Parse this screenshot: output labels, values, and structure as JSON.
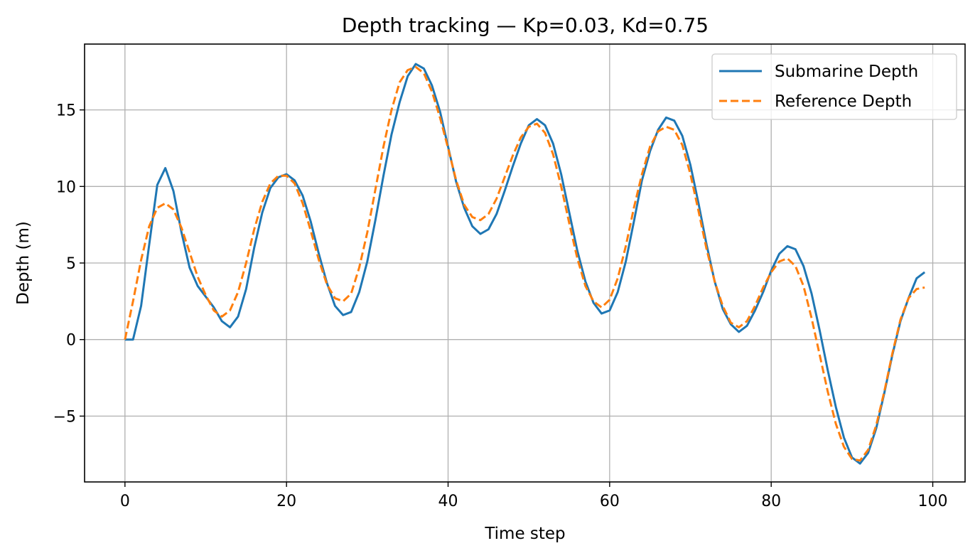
{
  "chart_data": {
    "type": "line",
    "title": "Depth tracking — Kp=0.03, Kd=0.75",
    "xlabel": "Time step",
    "ylabel": "Depth (m)",
    "xlim": [
      -5,
      104
    ],
    "ylim": [
      -9.3,
      19.3
    ],
    "grid": true,
    "legend_position": "top-right",
    "x_ticks": [
      0,
      20,
      40,
      60,
      80,
      100
    ],
    "x_tick_labels": [
      "0",
      "20",
      "40",
      "60",
      "80",
      "100"
    ],
    "y_ticks": [
      -5,
      0,
      5,
      10,
      15
    ],
    "y_tick_labels": [
      "−5",
      "0",
      "5",
      "10",
      "15"
    ],
    "series": [
      {
        "name": "Submarine Depth",
        "color": "#1f77b4",
        "style": "solid",
        "points": [
          [
            0,
            0
          ],
          [
            1,
            0
          ],
          [
            2,
            2.2
          ],
          [
            3,
            6.2
          ],
          [
            4,
            10.1
          ],
          [
            5,
            11.2
          ],
          [
            6,
            9.7
          ],
          [
            7,
            7
          ],
          [
            8,
            4.7
          ],
          [
            9,
            3.5
          ],
          [
            10,
            2.8
          ],
          [
            11,
            2.1
          ],
          [
            12,
            1.2
          ],
          [
            13,
            0.8
          ],
          [
            14,
            1.5
          ],
          [
            15,
            3.3
          ],
          [
            16,
            6
          ],
          [
            17,
            8.3
          ],
          [
            18,
            9.9
          ],
          [
            19,
            10.6
          ],
          [
            20,
            10.8
          ],
          [
            21,
            10.4
          ],
          [
            22,
            9.4
          ],
          [
            23,
            7.7
          ],
          [
            24,
            5.6
          ],
          [
            25,
            3.7
          ],
          [
            26,
            2.2
          ],
          [
            27,
            1.6
          ],
          [
            28,
            1.8
          ],
          [
            29,
            3.1
          ],
          [
            30,
            5.1
          ],
          [
            31,
            7.8
          ],
          [
            32,
            10.7
          ],
          [
            33,
            13.4
          ],
          [
            34,
            15.5
          ],
          [
            35,
            17.2
          ],
          [
            36,
            18
          ],
          [
            37,
            17.7
          ],
          [
            38,
            16.6
          ],
          [
            39,
            14.9
          ],
          [
            40,
            12.6
          ],
          [
            41,
            10.3
          ],
          [
            42,
            8.6
          ],
          [
            43,
            7.4
          ],
          [
            44,
            6.9
          ],
          [
            45,
            7.2
          ],
          [
            46,
            8.2
          ],
          [
            47,
            9.7
          ],
          [
            48,
            11.3
          ],
          [
            49,
            12.8
          ],
          [
            50,
            14
          ],
          [
            51,
            14.4
          ],
          [
            52,
            14
          ],
          [
            53,
            12.8
          ],
          [
            54,
            10.8
          ],
          [
            55,
            8.3
          ],
          [
            56,
            5.8
          ],
          [
            57,
            3.8
          ],
          [
            58,
            2.4
          ],
          [
            59,
            1.7
          ],
          [
            60,
            1.9
          ],
          [
            61,
            3.1
          ],
          [
            62,
            5.1
          ],
          [
            63,
            7.7
          ],
          [
            64,
            10.4
          ],
          [
            65,
            12.3
          ],
          [
            66,
            13.7
          ],
          [
            67,
            14.5
          ],
          [
            68,
            14.3
          ],
          [
            69,
            13.3
          ],
          [
            70,
            11.4
          ],
          [
            71,
            8.9
          ],
          [
            72,
            6.2
          ],
          [
            73,
            3.8
          ],
          [
            74,
            2
          ],
          [
            75,
            1
          ],
          [
            76,
            0.5
          ],
          [
            77,
            0.9
          ],
          [
            78,
            1.9
          ],
          [
            79,
            3.1
          ],
          [
            80,
            4.5
          ],
          [
            81,
            5.6
          ],
          [
            82,
            6.1
          ],
          [
            83,
            5.9
          ],
          [
            84,
            4.8
          ],
          [
            85,
            3
          ],
          [
            86,
            0.6
          ],
          [
            87,
            -2
          ],
          [
            88,
            -4.4
          ],
          [
            89,
            -6.4
          ],
          [
            90,
            -7.7
          ],
          [
            91,
            -8.1
          ],
          [
            92,
            -7.4
          ],
          [
            93,
            -5.8
          ],
          [
            94,
            -3.5
          ],
          [
            95,
            -1
          ],
          [
            96,
            1.2
          ],
          [
            97,
            2.7
          ],
          [
            98,
            4
          ],
          [
            99,
            4.4
          ]
        ]
      },
      {
        "name": "Reference Depth",
        "color": "#ff7f0e",
        "style": "dashed",
        "points": [
          [
            0,
            0
          ],
          [
            1,
            2.5
          ],
          [
            2,
            5.2
          ],
          [
            3,
            7.4
          ],
          [
            4,
            8.6
          ],
          [
            5,
            8.9
          ],
          [
            6,
            8.5
          ],
          [
            7,
            7.3
          ],
          [
            8,
            5.7
          ],
          [
            9,
            4.1
          ],
          [
            10,
            2.9
          ],
          [
            11,
            1.9
          ],
          [
            12,
            1.5
          ],
          [
            13,
            1.9
          ],
          [
            14,
            3.1
          ],
          [
            15,
            5
          ],
          [
            16,
            7.2
          ],
          [
            17,
            9
          ],
          [
            18,
            10.2
          ],
          [
            19,
            10.7
          ],
          [
            20,
            10.7
          ],
          [
            21,
            10.2
          ],
          [
            22,
            8.9
          ],
          [
            23,
            7.1
          ],
          [
            24,
            5.2
          ],
          [
            25,
            3.6
          ],
          [
            26,
            2.7
          ],
          [
            27,
            2.5
          ],
          [
            28,
            3
          ],
          [
            29,
            4.7
          ],
          [
            30,
            7
          ],
          [
            31,
            9.8
          ],
          [
            32,
            12.6
          ],
          [
            33,
            15
          ],
          [
            34,
            16.8
          ],
          [
            35,
            17.6
          ],
          [
            36,
            17.8
          ],
          [
            37,
            17.4
          ],
          [
            38,
            16.2
          ],
          [
            39,
            14.5
          ],
          [
            40,
            12.5
          ],
          [
            41,
            10.4
          ],
          [
            42,
            8.8
          ],
          [
            43,
            8
          ],
          [
            44,
            7.8
          ],
          [
            45,
            8.2
          ],
          [
            46,
            9.2
          ],
          [
            47,
            10.6
          ],
          [
            48,
            12
          ],
          [
            49,
            13.2
          ],
          [
            50,
            13.9
          ],
          [
            51,
            14.1
          ],
          [
            52,
            13.5
          ],
          [
            53,
            12.1
          ],
          [
            54,
            10
          ],
          [
            55,
            7.6
          ],
          [
            56,
            5.3
          ],
          [
            57,
            3.5
          ],
          [
            58,
            2.5
          ],
          [
            59,
            2.1
          ],
          [
            60,
            2.6
          ],
          [
            61,
            4
          ],
          [
            62,
            6.1
          ],
          [
            63,
            8.6
          ],
          [
            64,
            10.8
          ],
          [
            65,
            12.6
          ],
          [
            66,
            13.6
          ],
          [
            67,
            13.9
          ],
          [
            68,
            13.7
          ],
          [
            69,
            12.7
          ],
          [
            70,
            10.8
          ],
          [
            71,
            8.4
          ],
          [
            72,
            5.9
          ],
          [
            73,
            3.8
          ],
          [
            74,
            2.2
          ],
          [
            75,
            1.1
          ],
          [
            76,
            0.8
          ],
          [
            77,
            1.2
          ],
          [
            78,
            2.2
          ],
          [
            79,
            3.4
          ],
          [
            80,
            4.4
          ],
          [
            81,
            5.1
          ],
          [
            82,
            5.3
          ],
          [
            83,
            4.8
          ],
          [
            84,
            3.5
          ],
          [
            85,
            1.4
          ],
          [
            86,
            -1
          ],
          [
            87,
            -3.4
          ],
          [
            88,
            -5.5
          ],
          [
            89,
            -7
          ],
          [
            90,
            -7.8
          ],
          [
            91,
            -7.9
          ],
          [
            92,
            -7.2
          ],
          [
            93,
            -5.6
          ],
          [
            94,
            -3.4
          ],
          [
            95,
            -0.9
          ],
          [
            96,
            1.3
          ],
          [
            97,
            2.7
          ],
          [
            98,
            3.3
          ],
          [
            99,
            3.4
          ]
        ]
      }
    ]
  }
}
